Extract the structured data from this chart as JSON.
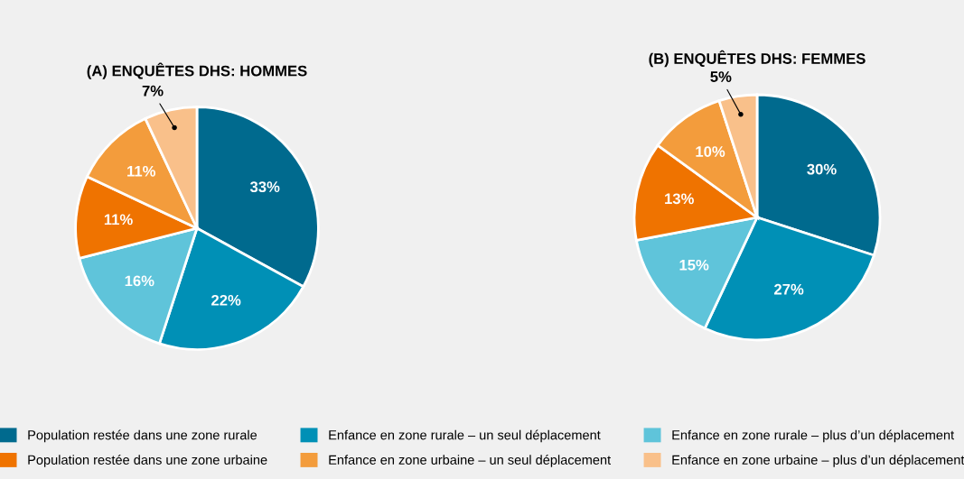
{
  "chart_data": [
    {
      "type": "pie",
      "title": "(A) ENQUÊTES DHS: HOMMES",
      "categories": [
        "Population restée dans une zone rurale",
        "Enfance en zone rurale – un seul déplacement",
        "Enfance en zone rurale – plus d’un déplacement",
        "Population restée dans une zone urbaine",
        "Enfance en zone urbaine – un seul déplacement",
        "Enfance en zone urbaine – plus d’un déplacement"
      ],
      "values": [
        33,
        22,
        16,
        11,
        11,
        7
      ],
      "colors": [
        "#006a8e",
        "#0090b6",
        "#5fc4da",
        "#ef7300",
        "#f39c3c",
        "#f9c08a"
      ],
      "value_labels": [
        "33%",
        "22%",
        "16%",
        "11%",
        "11%",
        "7%"
      ],
      "legend": "bottom"
    },
    {
      "type": "pie",
      "title": "(B) ENQUÊTES DHS: FEMMES",
      "categories": [
        null,
        null,
        null,
        null,
        null,
        null
      ],
      "values": [
        30,
        27,
        15,
        13,
        10,
        5
      ],
      "colors": [
        "#006a8e",
        "#0090b6",
        "#5fc4da",
        "#ef7300",
        "#f39c3c",
        "#f9c08a"
      ],
      "value_labels": [
        "30%",
        "27%",
        "15%",
        "13%",
        "10%",
        "5%"
      ]
    }
  ]
}
